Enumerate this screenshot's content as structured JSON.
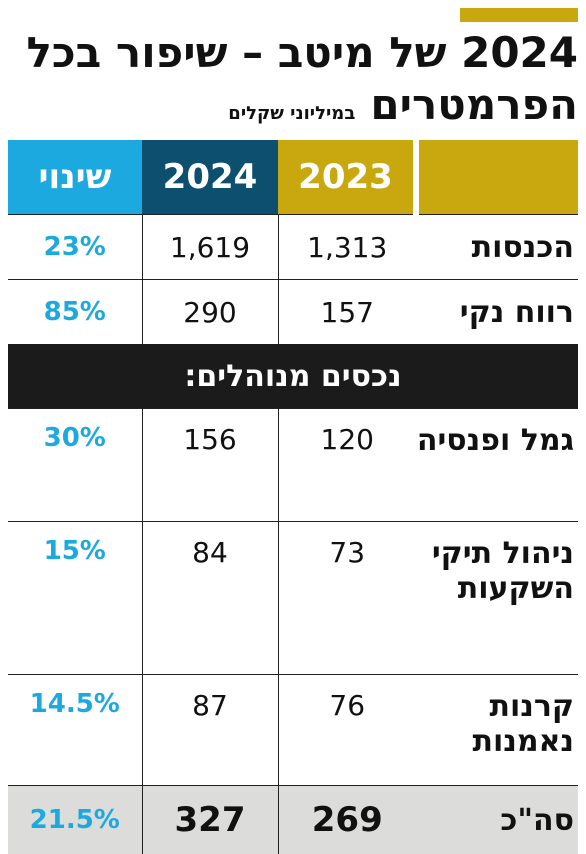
{
  "title_line1": "2024 של מיטב – שיפור בכל",
  "title_line2": "הפרמטרים",
  "subtitle": "במיליוני שקלים",
  "colors": {
    "gold": "#c9a80f",
    "navy": "#0c4f6f",
    "cyan": "#1ca9e0",
    "dark": "#1b1b1b",
    "total_bg": "#dcdcda"
  },
  "chart_data": {
    "type": "table",
    "columns": [
      "",
      "2023",
      "2024",
      "שינוי"
    ],
    "rows": [
      {
        "label": "הכנסות",
        "v2023": "1,313",
        "v2024": "1,619",
        "change": "23%"
      },
      {
        "label": "רווח נקי",
        "v2023": "157",
        "v2024": "290",
        "change": "85%"
      },
      {
        "section": "נכסים מנוהלים:"
      },
      {
        "label": "גמל ופנסיה",
        "v2023": "120",
        "v2024": "156",
        "change": "30%"
      },
      {
        "label": "ניהול תיקי השקעות",
        "v2023": "73",
        "v2024": "84",
        "change": "15%"
      },
      {
        "label": "קרנות נאמנות",
        "v2023": "76",
        "v2024": "87",
        "change": "14.5%"
      },
      {
        "label": "סה\"כ",
        "v2023": "269",
        "v2024": "327",
        "change": "21.5%"
      }
    ]
  }
}
